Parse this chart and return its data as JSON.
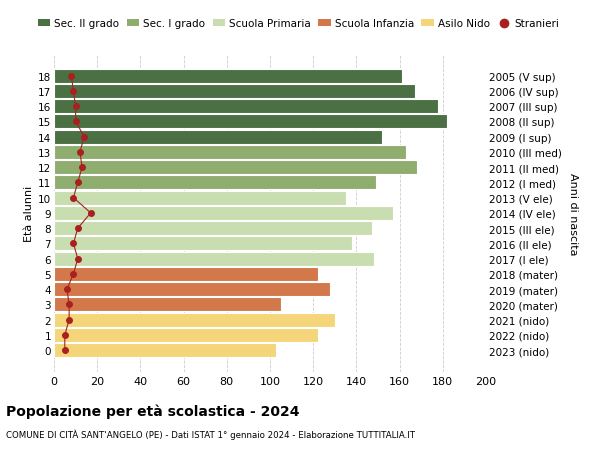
{
  "ages": [
    0,
    1,
    2,
    3,
    4,
    5,
    6,
    7,
    8,
    9,
    10,
    11,
    12,
    13,
    14,
    15,
    16,
    17,
    18
  ],
  "right_labels": [
    "2023 (nido)",
    "2022 (nido)",
    "2021 (nido)",
    "2020 (mater)",
    "2019 (mater)",
    "2018 (mater)",
    "2017 (I ele)",
    "2016 (II ele)",
    "2015 (III ele)",
    "2014 (IV ele)",
    "2013 (V ele)",
    "2012 (I med)",
    "2011 (II med)",
    "2010 (III med)",
    "2009 (I sup)",
    "2008 (II sup)",
    "2007 (III sup)",
    "2006 (IV sup)",
    "2005 (V sup)"
  ],
  "bar_values": [
    103,
    122,
    130,
    105,
    128,
    122,
    148,
    138,
    147,
    157,
    135,
    149,
    168,
    163,
    152,
    182,
    178,
    167,
    161
  ],
  "stranieri_values": [
    5,
    5,
    7,
    7,
    6,
    9,
    11,
    9,
    11,
    17,
    9,
    11,
    13,
    12,
    14,
    10,
    10,
    9,
    8
  ],
  "bar_colors": [
    "#f5d57a",
    "#f5d57a",
    "#f5d57a",
    "#d2784a",
    "#d2784a",
    "#d2784a",
    "#c8ddb0",
    "#c8ddb0",
    "#c8ddb0",
    "#c8ddb0",
    "#c8ddb0",
    "#8fad6e",
    "#8fad6e",
    "#8fad6e",
    "#4a7043",
    "#4a7043",
    "#4a7043",
    "#4a7043",
    "#4a7043"
  ],
  "legend_labels": [
    "Sec. II grado",
    "Sec. I grado",
    "Scuola Primaria",
    "Scuola Infanzia",
    "Asilo Nido",
    "Stranieri"
  ],
  "legend_colors": [
    "#4a7043",
    "#8fad6e",
    "#c8ddb0",
    "#d2784a",
    "#f5d57a",
    "#a82020"
  ],
  "stranieri_color": "#a82020",
  "title": "Popolazione per età scolastica - 2024",
  "subtitle": "COMUNE DI CITÀ SANT'ANGELO (PE) - Dati ISTAT 1° gennaio 2024 - Elaborazione TUTTITALIA.IT",
  "ylabel": "Età alunni",
  "right_ylabel": "Anni di nascita",
  "xlim": [
    0,
    200
  ],
  "xticks": [
    0,
    20,
    40,
    60,
    80,
    100,
    120,
    140,
    160,
    180,
    200
  ],
  "bg_color": "#ffffff",
  "grid_color": "#cccccc"
}
